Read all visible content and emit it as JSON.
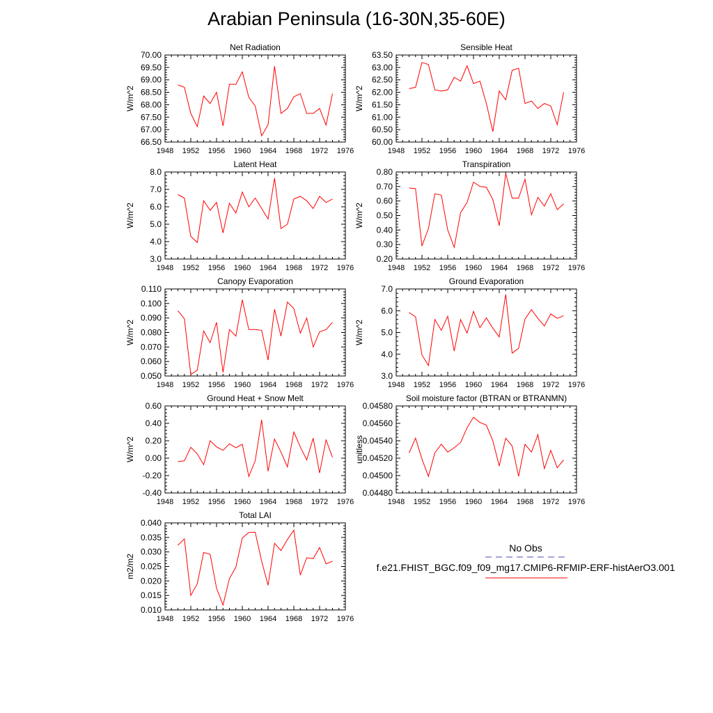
{
  "title": "Arabian Peninsula (16-30N,35-60E)",
  "legend": {
    "obs_label": "No Obs",
    "obs_color": "#4a4ab8",
    "run_label": "f.e21.FHIST_BGC.f09_f09_mg17.CMIP6-RFMIP-ERF-histAerO3.001",
    "run_color": "#ff0000"
  },
  "chart_data": [
    {
      "type": "line",
      "title": "Net Radiation",
      "ylabel": "W/m^2",
      "xlim": [
        1948,
        1976
      ],
      "xticks": [
        1948,
        1952,
        1956,
        1960,
        1964,
        1968,
        1972,
        1976
      ],
      "ylim": [
        66.5,
        70.0
      ],
      "yticks": [
        "66.50",
        "67.00",
        "67.50",
        "68.00",
        "68.50",
        "69.00",
        "69.50",
        "70.00"
      ],
      "x": [
        1950,
        1951,
        1952,
        1953,
        1954,
        1955,
        1956,
        1957,
        1958,
        1959,
        1960,
        1961,
        1962,
        1963,
        1964,
        1965,
        1966,
        1967,
        1968,
        1969,
        1970,
        1971,
        1972,
        1973,
        1974
      ],
      "values": [
        68.8,
        68.7,
        67.65,
        67.12,
        68.35,
        68.05,
        68.5,
        67.15,
        68.82,
        68.82,
        69.32,
        68.3,
        67.95,
        66.75,
        67.2,
        69.55,
        67.65,
        67.85,
        68.32,
        68.45,
        67.65,
        67.65,
        67.85,
        67.18,
        68.45
      ]
    },
    {
      "type": "line",
      "title": "Sensible Heat",
      "ylabel": "W/m^2",
      "xlim": [
        1948,
        1976
      ],
      "xticks": [
        1948,
        1952,
        1956,
        1960,
        1964,
        1968,
        1972,
        1976
      ],
      "ylim": [
        60.0,
        63.5
      ],
      "yticks": [
        "60.00",
        "60.50",
        "61.00",
        "61.50",
        "62.00",
        "62.50",
        "63.00",
        "63.50"
      ],
      "x": [
        1950,
        1951,
        1952,
        1953,
        1954,
        1955,
        1956,
        1957,
        1958,
        1959,
        1960,
        1961,
        1962,
        1963,
        1964,
        1965,
        1966,
        1967,
        1968,
        1969,
        1970,
        1971,
        1972,
        1973,
        1974
      ],
      "values": [
        62.15,
        62.2,
        63.2,
        63.12,
        62.1,
        62.05,
        62.1,
        62.6,
        62.45,
        63.07,
        62.35,
        62.45,
        61.55,
        60.42,
        62.05,
        61.7,
        62.88,
        62.97,
        61.55,
        61.65,
        61.35,
        61.55,
        61.45,
        60.7,
        62.0
      ]
    },
    {
      "type": "line",
      "title": "Latent Heat",
      "ylabel": "W/m^2",
      "xlim": [
        1948,
        1976
      ],
      "xticks": [
        1948,
        1952,
        1956,
        1960,
        1964,
        1968,
        1972,
        1976
      ],
      "ylim": [
        3.0,
        8.0
      ],
      "yticks": [
        "3.0",
        "4.0",
        "5.0",
        "6.0",
        "7.0",
        "8.0"
      ],
      "x": [
        1950,
        1951,
        1952,
        1953,
        1954,
        1955,
        1956,
        1957,
        1958,
        1959,
        1960,
        1961,
        1962,
        1963,
        1964,
        1965,
        1966,
        1967,
        1968,
        1969,
        1970,
        1971,
        1972,
        1973,
        1974
      ],
      "values": [
        6.7,
        6.5,
        4.3,
        3.95,
        6.35,
        5.8,
        6.25,
        4.5,
        6.2,
        5.65,
        6.85,
        6.0,
        6.5,
        5.9,
        5.3,
        7.65,
        4.75,
        5.0,
        6.45,
        6.6,
        6.35,
        5.9,
        6.6,
        6.25,
        6.45
      ]
    },
    {
      "type": "line",
      "title": "Transpiration",
      "ylabel": "W/m^2",
      "xlim": [
        1948,
        1976
      ],
      "xticks": [
        1948,
        1952,
        1956,
        1960,
        1964,
        1968,
        1972,
        1976
      ],
      "ylim": [
        0.2,
        0.8
      ],
      "yticks": [
        "0.20",
        "0.30",
        "0.40",
        "0.50",
        "0.60",
        "0.70",
        "0.80"
      ],
      "x": [
        1950,
        1951,
        1952,
        1953,
        1954,
        1955,
        1956,
        1957,
        1958,
        1959,
        1960,
        1961,
        1962,
        1963,
        1964,
        1965,
        1966,
        1967,
        1968,
        1969,
        1970,
        1971,
        1972,
        1973,
        1974
      ],
      "values": [
        0.69,
        0.685,
        0.29,
        0.41,
        0.65,
        0.64,
        0.4,
        0.28,
        0.52,
        0.59,
        0.73,
        0.7,
        0.695,
        0.61,
        0.43,
        0.79,
        0.62,
        0.62,
        0.75,
        0.505,
        0.625,
        0.565,
        0.65,
        0.54,
        0.58
      ]
    },
    {
      "type": "line",
      "title": "Canopy Evaporation",
      "ylabel": "W/m^2",
      "xlim": [
        1948,
        1976
      ],
      "xticks": [
        1948,
        1952,
        1956,
        1960,
        1964,
        1968,
        1972,
        1976
      ],
      "ylim": [
        0.05,
        0.11
      ],
      "yticks": [
        "0.050",
        "0.060",
        "0.070",
        "0.080",
        "0.090",
        "0.100",
        "0.110"
      ],
      "x": [
        1950,
        1951,
        1952,
        1953,
        1954,
        1955,
        1956,
        1957,
        1958,
        1959,
        1960,
        1961,
        1962,
        1963,
        1964,
        1965,
        1966,
        1967,
        1968,
        1969,
        1970,
        1971,
        1972,
        1973,
        1974
      ],
      "values": [
        0.095,
        0.0895,
        0.051,
        0.054,
        0.081,
        0.073,
        0.087,
        0.0525,
        0.082,
        0.0775,
        0.1025,
        0.082,
        0.082,
        0.0815,
        0.061,
        0.096,
        0.0775,
        0.101,
        0.0965,
        0.0795,
        0.09,
        0.07,
        0.0805,
        0.082,
        0.087
      ]
    },
    {
      "type": "line",
      "title": "Ground Evaporation",
      "ylabel": "W/m^2",
      "xlim": [
        1948,
        1976
      ],
      "xticks": [
        1948,
        1952,
        1956,
        1960,
        1964,
        1968,
        1972,
        1976
      ],
      "ylim": [
        3.0,
        7.0
      ],
      "yticks": [
        "3.0",
        "4.0",
        "5.0",
        "6.0",
        "7.0"
      ],
      "x": [
        1950,
        1951,
        1952,
        1953,
        1954,
        1955,
        1956,
        1957,
        1958,
        1959,
        1960,
        1961,
        1962,
        1963,
        1964,
        1965,
        1966,
        1967,
        1968,
        1969,
        1970,
        1971,
        1972,
        1973,
        1974
      ],
      "values": [
        5.92,
        5.72,
        3.97,
        3.48,
        5.6,
        5.1,
        5.75,
        4.15,
        5.6,
        4.97,
        5.97,
        5.22,
        5.67,
        5.2,
        4.8,
        6.75,
        4.05,
        4.27,
        5.62,
        6.05,
        5.65,
        5.3,
        5.85,
        5.65,
        5.77
      ]
    },
    {
      "type": "line",
      "title": "Ground Heat + Snow Melt",
      "ylabel": "W/m^2",
      "xlim": [
        1948,
        1976
      ],
      "xticks": [
        1948,
        1952,
        1956,
        1960,
        1964,
        1968,
        1972,
        1976
      ],
      "ylim": [
        -0.4,
        0.6
      ],
      "yticks": [
        "-0.40",
        "-0.20",
        "0.00",
        "0.20",
        "0.40",
        "0.60"
      ],
      "x": [
        1950,
        1951,
        1952,
        1953,
        1954,
        1955,
        1956,
        1957,
        1958,
        1959,
        1960,
        1961,
        1962,
        1963,
        1964,
        1965,
        1966,
        1967,
        1968,
        1969,
        1970,
        1971,
        1972,
        1973,
        1974
      ],
      "values": [
        -0.04,
        -0.03,
        0.125,
        0.05,
        -0.075,
        0.2,
        0.13,
        0.09,
        0.165,
        0.12,
        0.16,
        -0.21,
        -0.03,
        0.44,
        -0.15,
        0.22,
        0.07,
        -0.1,
        0.3,
        0.13,
        -0.02,
        0.23,
        -0.17,
        0.21,
        0.01
      ]
    },
    {
      "type": "line",
      "title": "Soil moisture factor (BTRAN or BTRANMN)",
      "ylabel": "unitless",
      "xlim": [
        1948,
        1976
      ],
      "xticks": [
        1948,
        1952,
        1956,
        1960,
        1964,
        1968,
        1972,
        1976
      ],
      "ylim": [
        0.0448,
        0.0458
      ],
      "yticks": [
        "0.04480",
        "0.04500",
        "0.04520",
        "0.04540",
        "0.04560",
        "0.04580"
      ],
      "x": [
        1950,
        1951,
        1952,
        1953,
        1954,
        1955,
        1956,
        1957,
        1958,
        1959,
        1960,
        1961,
        1962,
        1963,
        1964,
        1965,
        1966,
        1967,
        1968,
        1969,
        1970,
        1971,
        1972,
        1973,
        1974
      ],
      "values": [
        0.04526,
        0.04543,
        0.04519,
        0.04499,
        0.04526,
        0.04536,
        0.04527,
        0.04532,
        0.04538,
        0.04555,
        0.04567,
        0.04561,
        0.04558,
        0.0454,
        0.04511,
        0.04543,
        0.04534,
        0.04499,
        0.04536,
        0.04527,
        0.04547,
        0.04508,
        0.04529,
        0.04509,
        0.04518
      ]
    },
    {
      "type": "line",
      "title": "Total LAI",
      "ylabel": "m2/m2",
      "xlim": [
        1948,
        1976
      ],
      "xticks": [
        1948,
        1952,
        1956,
        1960,
        1964,
        1968,
        1972,
        1976
      ],
      "ylim": [
        0.01,
        0.04
      ],
      "yticks": [
        "0.010",
        "0.015",
        "0.020",
        "0.025",
        "0.030",
        "0.035",
        "0.040"
      ],
      "x": [
        1950,
        1951,
        1952,
        1953,
        1954,
        1955,
        1956,
        1957,
        1958,
        1959,
        1960,
        1961,
        1962,
        1963,
        1964,
        1965,
        1966,
        1967,
        1968,
        1969,
        1970,
        1971,
        1972,
        1973,
        1974
      ],
      "values": [
        0.0323,
        0.0345,
        0.015,
        0.019,
        0.0298,
        0.0292,
        0.0175,
        0.0117,
        0.0208,
        0.0248,
        0.0348,
        0.0367,
        0.0368,
        0.0268,
        0.0185,
        0.033,
        0.0305,
        0.0343,
        0.0375,
        0.022,
        0.028,
        0.0277,
        0.0315,
        0.0259,
        0.0268
      ]
    }
  ]
}
